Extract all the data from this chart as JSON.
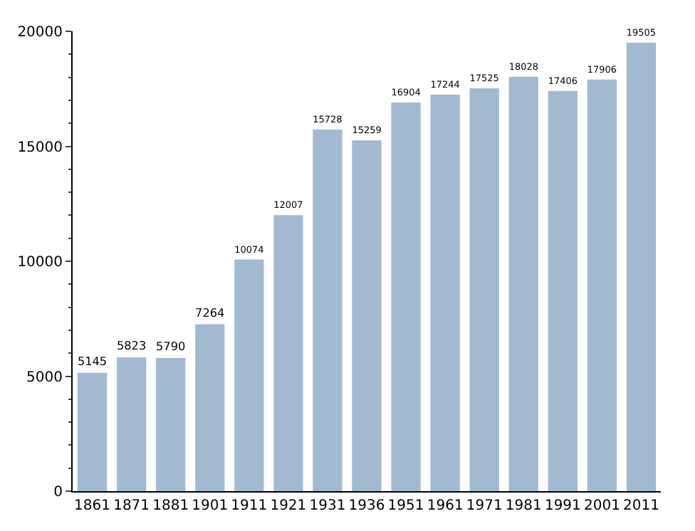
{
  "chart_data": {
    "type": "bar",
    "categories": [
      "1861",
      "1871",
      "1881",
      "1901",
      "1911",
      "1921",
      "1931",
      "1936",
      "1951",
      "1961",
      "1971",
      "1981",
      "1991",
      "2001",
      "2011"
    ],
    "values": [
      5145,
      5823,
      5790,
      7264,
      10074,
      12007,
      15728,
      15259,
      16904,
      17244,
      17525,
      18028,
      17406,
      17906,
      19505
    ],
    "color": "#a2b9d2",
    "ylim": [
      0,
      20000
    ],
    "yticks": [
      0,
      5000,
      10000,
      15000,
      20000
    ],
    "data_labels": true,
    "grid": false,
    "legend": false
  }
}
